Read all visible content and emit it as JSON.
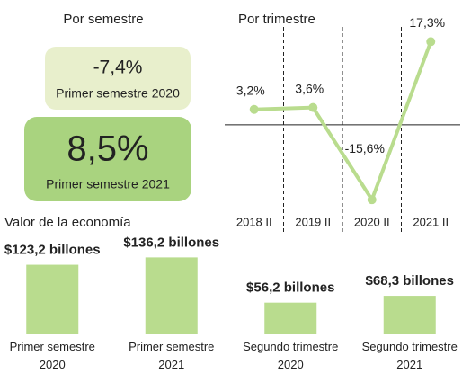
{
  "semestre": {
    "title": "Por semestre",
    "items": [
      {
        "value": "-7,4%",
        "caption": "Primer semestre 2020"
      },
      {
        "value": "8,5%",
        "caption": "Primer semestre 2021"
      }
    ]
  },
  "chart_data": [
    {
      "type": "line",
      "title": "Por trimestre",
      "categories": [
        "2018 II",
        "2019 II",
        "2020 II",
        "2021 II"
      ],
      "values": [
        3.2,
        3.6,
        -15.6,
        17.3
      ],
      "value_labels": [
        "3,2%",
        "3,6%",
        "-15,6%",
        "17,3%"
      ],
      "color": "#b9dc8e",
      "ylim": [
        -18,
        20
      ]
    },
    {
      "type": "bar",
      "title": "Valor de la economía",
      "categories": [
        "Primer semestre 2020",
        "Primer semestre 2021",
        "Segundo trimestre 2020",
        "Segundo trimestre 2021"
      ],
      "values": [
        123.2,
        136.2,
        56.2,
        68.3
      ],
      "value_labels": [
        "$123,2 billones",
        "$136,2 billones",
        "$56,2 billones",
        "$68,3 billones"
      ],
      "color": "#b9dc8e",
      "ylim": [
        0,
        140
      ]
    }
  ]
}
